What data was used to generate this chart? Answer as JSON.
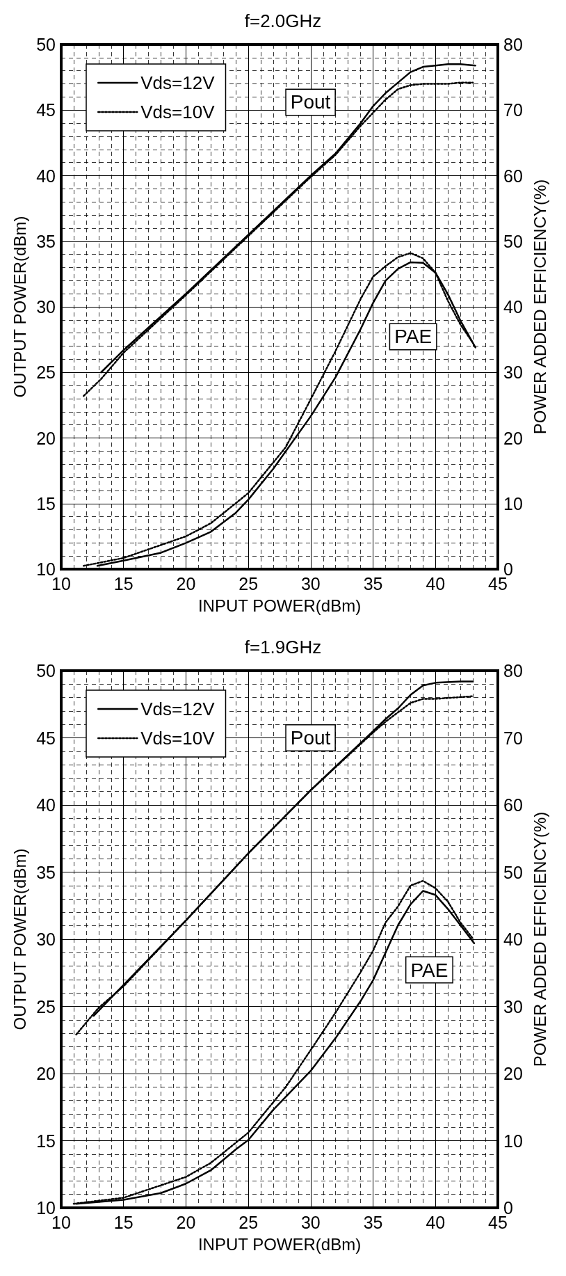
{
  "chart_data": [
    {
      "type": "line",
      "title": "f=2.0GHz",
      "xlabel": "INPUT POWER(dBm)",
      "ylabel": "OUTPUT POWER(dBm)",
      "y2label": "POWER ADDED EFFICIENCY(%)",
      "xlim": [
        10,
        45
      ],
      "xticks": [
        10,
        15,
        20,
        25,
        30,
        35,
        40,
        45
      ],
      "ylim": [
        10,
        50
      ],
      "yticks": [
        10,
        15,
        20,
        25,
        30,
        35,
        40,
        45,
        50
      ],
      "y2lim": [
        0,
        80
      ],
      "y2ticks": [
        0,
        10,
        20,
        30,
        40,
        50,
        60,
        70,
        80
      ],
      "grid": true,
      "legend": "top left",
      "marker": "none",
      "annotations": [
        "Pout",
        "PAE"
      ],
      "series": [
        {
          "name": "Vds=12V",
          "color": "#000000",
          "line_style": "solid",
          "x": [
            13.2,
            15,
            20,
            25,
            30,
            32,
            34,
            35,
            36,
            37,
            38,
            39,
            40,
            41,
            42,
            43.2
          ],
          "values": [
            25.0,
            26.7,
            31.0,
            35.5,
            40.0,
            41.7,
            44.0,
            45.3,
            46.3,
            47.1,
            47.9,
            48.3,
            48.4,
            48.5,
            48.5,
            48.4
          ]
        },
        {
          "name": "Vds=10V",
          "color": "#000000",
          "line_style": "dotted",
          "x": [
            11.8,
            13.2,
            15,
            20,
            25,
            30,
            32,
            34,
            35,
            36,
            37,
            38,
            39,
            40,
            41,
            42,
            43
          ],
          "values": [
            23.2,
            24.5,
            26.5,
            30.9,
            35.4,
            39.9,
            41.6,
            43.8,
            44.8,
            45.8,
            46.6,
            46.9,
            47.0,
            47.0,
            47.0,
            47.1,
            47.1
          ]
        },
        {
          "color": "#000000",
          "line_style": "solid",
          "axis": "y2",
          "x": [
            12.9,
            15,
            18,
            20,
            22,
            24,
            25,
            27,
            30,
            32,
            34,
            35,
            36,
            37,
            38,
            39,
            40,
            41,
            42,
            43.2
          ],
          "values": [
            0.5,
            1.3,
            2.5,
            4.0,
            5.7,
            8.6,
            10.6,
            15.3,
            23.3,
            29.3,
            36.6,
            40.6,
            44.0,
            45.8,
            46.8,
            46.7,
            45.2,
            41.9,
            37.9,
            33.8
          ]
        },
        {
          "color": "#000000",
          "line_style": "dotted",
          "axis": "y2",
          "x": [
            11.8,
            15,
            20,
            22,
            25,
            28,
            30,
            32,
            34,
            35,
            36,
            37,
            38,
            39,
            40,
            41,
            42,
            43
          ],
          "values": [
            0.5,
            1.7,
            5.0,
            7.0,
            11.6,
            18.6,
            25.9,
            33.3,
            41.2,
            44.6,
            46.2,
            47.6,
            48.2,
            47.4,
            45.2,
            40.9,
            37.3,
            34.5
          ]
        }
      ]
    },
    {
      "type": "line",
      "title": "f=1.9GHz",
      "xlabel": "INPUT POWER(dBm)",
      "ylabel": "OUTPUT POWER(dBm)",
      "y2label": "POWER ADDED EFFICIENCY(%)",
      "xlim": [
        10,
        45
      ],
      "xticks": [
        10,
        15,
        20,
        25,
        30,
        35,
        40,
        45
      ],
      "ylim": [
        10,
        50
      ],
      "yticks": [
        10,
        15,
        20,
        25,
        30,
        35,
        40,
        45,
        50
      ],
      "y2lim": [
        0,
        80
      ],
      "y2ticks": [
        0,
        10,
        20,
        30,
        40,
        50,
        60,
        70,
        80
      ],
      "grid": true,
      "legend": "top left",
      "marker": "none",
      "annotations": [
        "Pout",
        "PAE"
      ],
      "series": [
        {
          "name": "Vds=12V",
          "color": "#000000",
          "line_style": "solid",
          "x": [
            12.6,
            15,
            20,
            25,
            30,
            35,
            36,
            37,
            38,
            39,
            40,
            42,
            43
          ],
          "values": [
            24.3,
            26.6,
            31.4,
            36.4,
            41.1,
            45.5,
            46.4,
            47.2,
            48.2,
            48.9,
            49.1,
            49.2,
            49.2
          ]
        },
        {
          "name": "Vds=10V",
          "color": "#000000",
          "line_style": "dotted",
          "x": [
            11.2,
            13,
            15,
            20,
            25,
            30,
            35,
            36,
            37,
            38,
            39,
            40,
            43
          ],
          "values": [
            22.9,
            24.9,
            26.5,
            31.4,
            36.4,
            41.1,
            45.4,
            46.2,
            46.9,
            47.6,
            47.9,
            47.9,
            48.1
          ]
        },
        {
          "color": "#000000",
          "line_style": "solid",
          "axis": "y2",
          "x": [
            11.2,
            15,
            18,
            20,
            22,
            24,
            25,
            27,
            30,
            32,
            34,
            35,
            36,
            37,
            38,
            39,
            40,
            41,
            42,
            43.1
          ],
          "values": [
            0.6,
            1.2,
            2.2,
            3.6,
            5.6,
            8.7,
            10.1,
            14.6,
            20.4,
            25.3,
            30.8,
            33.9,
            38.0,
            42.1,
            45.2,
            47.2,
            46.6,
            44.5,
            42.1,
            39.4
          ]
        },
        {
          "color": "#000000",
          "line_style": "dotted",
          "axis": "y2",
          "x": [
            11.0,
            15,
            20,
            22,
            25,
            28,
            30,
            32,
            34,
            35,
            36,
            37,
            38,
            39,
            40,
            41,
            42,
            43
          ],
          "values": [
            0.6,
            1.5,
            4.6,
            6.7,
            11.2,
            18.0,
            23.5,
            29.1,
            35.1,
            38.3,
            42.5,
            44.9,
            48.0,
            48.7,
            47.6,
            45.6,
            42.5,
            40.1
          ]
        }
      ]
    }
  ]
}
